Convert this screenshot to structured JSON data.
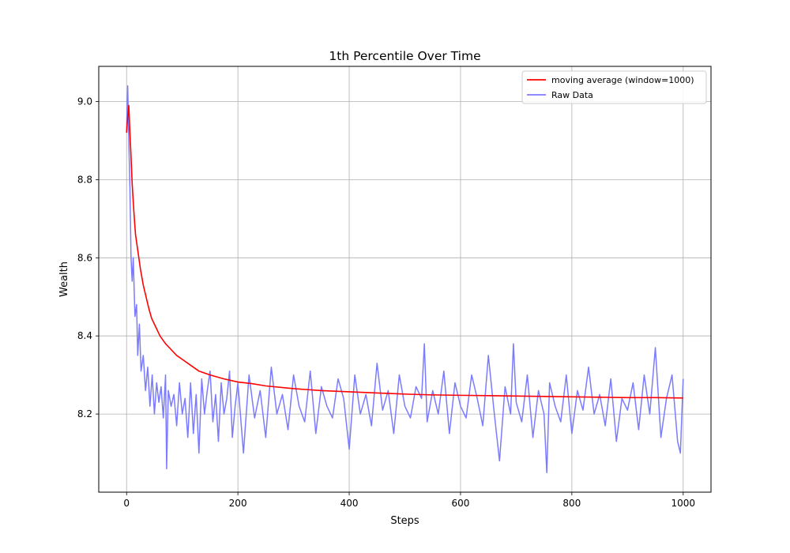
{
  "chart_data": {
    "type": "line",
    "title": "1th Percentile Over Time",
    "xlabel": "Steps",
    "ylabel": "Wealth",
    "xlim": [
      -50,
      1050
    ],
    "ylim": [
      8.0,
      9.09
    ],
    "xticks": [
      0,
      200,
      400,
      600,
      800,
      1000
    ],
    "yticks": [
      8.2,
      8.4,
      8.6,
      8.8,
      9.0
    ],
    "xtick_labels": [
      "0",
      "200",
      "400",
      "600",
      "800",
      "1000"
    ],
    "ytick_labels": [
      "8.2",
      "8.4",
      "8.6",
      "8.8",
      "9.0"
    ],
    "grid": true,
    "legend_position": "top-right",
    "series": [
      {
        "name": "moving average (window=1000)",
        "color": "#ff0000",
        "x": [
          0,
          2,
          4,
          6,
          8,
          10,
          13,
          16,
          20,
          25,
          30,
          35,
          40,
          45,
          50,
          60,
          70,
          80,
          90,
          100,
          115,
          130,
          150,
          175,
          200,
          225,
          250,
          300,
          350,
          400,
          450,
          500,
          550,
          600,
          650,
          700,
          750,
          800,
          850,
          900,
          950,
          1000
        ],
        "y": [
          8.92,
          8.96,
          8.99,
          8.92,
          8.86,
          8.79,
          8.72,
          8.66,
          8.62,
          8.57,
          8.53,
          8.5,
          8.47,
          8.445,
          8.43,
          8.4,
          8.38,
          8.365,
          8.35,
          8.34,
          8.325,
          8.31,
          8.3,
          8.29,
          8.282,
          8.278,
          8.272,
          8.265,
          8.26,
          8.257,
          8.254,
          8.251,
          8.249,
          8.248,
          8.247,
          8.246,
          8.245,
          8.244,
          8.243,
          8.242,
          8.242,
          8.241
        ]
      },
      {
        "name": "Raw Data",
        "color": "#7b7bff",
        "x": [
          0,
          2,
          4,
          6,
          8,
          10,
          12,
          15,
          18,
          20,
          23,
          26,
          30,
          34,
          38,
          42,
          46,
          50,
          54,
          58,
          62,
          66,
          70,
          72,
          75,
          80,
          85,
          90,
          95,
          100,
          105,
          110,
          115,
          120,
          125,
          130,
          135,
          140,
          145,
          150,
          155,
          160,
          165,
          170,
          175,
          180,
          185,
          190,
          195,
          200,
          210,
          220,
          230,
          240,
          250,
          260,
          270,
          280,
          290,
          300,
          310,
          320,
          330,
          340,
          350,
          360,
          370,
          380,
          390,
          400,
          410,
          420,
          430,
          440,
          450,
          460,
          470,
          480,
          490,
          500,
          510,
          520,
          530,
          535,
          540,
          550,
          560,
          570,
          580,
          590,
          600,
          610,
          620,
          630,
          640,
          650,
          660,
          670,
          680,
          690,
          695,
          700,
          710,
          720,
          730,
          740,
          750,
          755,
          760,
          770,
          780,
          790,
          800,
          810,
          820,
          830,
          840,
          850,
          860,
          870,
          880,
          890,
          900,
          910,
          920,
          930,
          940,
          950,
          960,
          970,
          980,
          990,
          995,
          1000
        ],
        "y": [
          8.92,
          9.04,
          8.9,
          8.78,
          8.6,
          8.54,
          8.6,
          8.45,
          8.48,
          8.35,
          8.43,
          8.31,
          8.35,
          8.26,
          8.32,
          8.22,
          8.3,
          8.2,
          8.28,
          8.23,
          8.27,
          8.19,
          8.3,
          8.06,
          8.26,
          8.22,
          8.25,
          8.17,
          8.28,
          8.2,
          8.24,
          8.14,
          8.28,
          8.15,
          8.25,
          8.1,
          8.29,
          8.2,
          8.26,
          8.31,
          8.18,
          8.25,
          8.13,
          8.28,
          8.2,
          8.24,
          8.31,
          8.14,
          8.22,
          8.28,
          8.1,
          8.3,
          8.19,
          8.26,
          8.14,
          8.32,
          8.2,
          8.25,
          8.16,
          8.3,
          8.22,
          8.18,
          8.31,
          8.15,
          8.27,
          8.22,
          8.19,
          8.29,
          8.24,
          8.11,
          8.3,
          8.2,
          8.25,
          8.17,
          8.33,
          8.21,
          8.26,
          8.15,
          8.3,
          8.22,
          8.19,
          8.27,
          8.24,
          8.38,
          8.18,
          8.26,
          8.2,
          8.31,
          8.15,
          8.28,
          8.22,
          8.19,
          8.3,
          8.24,
          8.17,
          8.35,
          8.21,
          8.08,
          8.27,
          8.2,
          8.38,
          8.23,
          8.18,
          8.3,
          8.14,
          8.26,
          8.2,
          8.05,
          8.28,
          8.22,
          8.18,
          8.3,
          8.15,
          8.26,
          8.21,
          8.32,
          8.2,
          8.25,
          8.17,
          8.29,
          8.13,
          8.24,
          8.21,
          8.28,
          8.16,
          8.3,
          8.2,
          8.37,
          8.14,
          8.24,
          8.3,
          8.13,
          8.1,
          8.29
        ]
      }
    ]
  }
}
